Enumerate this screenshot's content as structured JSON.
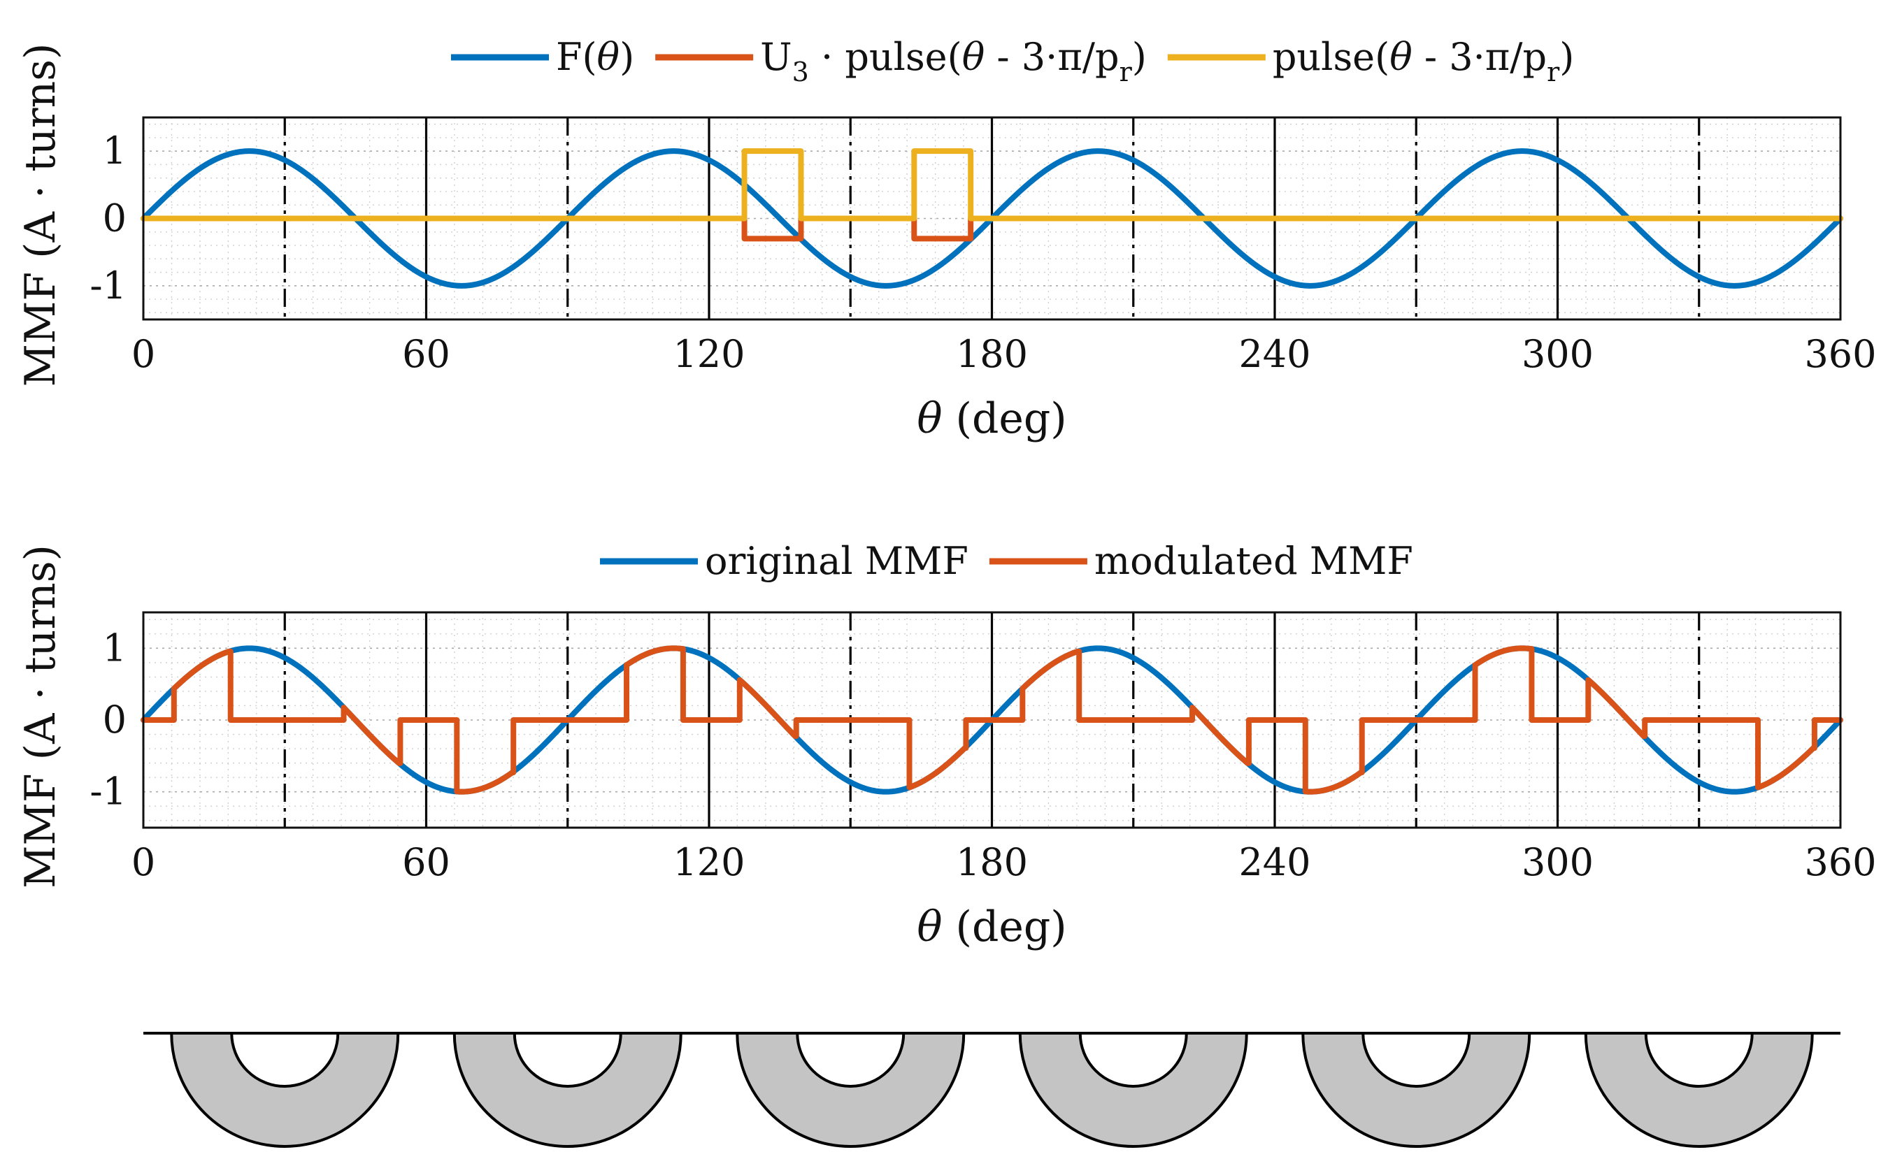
{
  "colors": {
    "blue": "#0072BD",
    "orange": "#D95319",
    "yellow": "#EDB120",
    "rotor_fill": "#c4c4c4"
  },
  "chart_data": [
    {
      "type": "line",
      "xlabel_var": "θ",
      "xlabel_unit": "(deg)",
      "ylabel": "MMF (A · turns)",
      "xlim": [
        0,
        360
      ],
      "ylim": [
        -1.5,
        1.5
      ],
      "xticks": [
        0,
        60,
        120,
        180,
        240,
        300,
        360
      ],
      "yticks": [
        1,
        0,
        -1
      ],
      "ytick_labels": [
        "1",
        "0",
        "-1"
      ],
      "grid": "minor",
      "legend_position": "top-center",
      "legend": [
        {
          "key": "F",
          "color": "blue",
          "main": "F(",
          "var": "θ",
          "end": ")"
        },
        {
          "key": "U3pulse",
          "color": "orange",
          "main": "U",
          "sub1": "3",
          "mid": " · pulse(",
          "var": "θ",
          "expr": " - 3·π/p",
          "sub2": "r",
          "end": ")"
        },
        {
          "key": "pulse",
          "color": "yellow",
          "main": "pulse(",
          "var": "θ",
          "expr": " - 3·π/p",
          "sub2": "r",
          "end": ")"
        }
      ],
      "series": [
        {
          "name": "F(θ)",
          "function": "sin(4θ)",
          "color": "blue"
        },
        {
          "name": "U3 · pulse(θ - 3·π/pr)",
          "color": "orange",
          "segments": [
            [
              127.5,
              139.5
            ],
            [
              163.5,
              175.5
            ]
          ],
          "level": -0.3
        },
        {
          "name": "pulse(θ - 3·π/pr)",
          "color": "yellow",
          "segments": [
            [
              127.5,
              139.5
            ],
            [
              163.5,
              175.5
            ]
          ],
          "level": 1
        }
      ]
    },
    {
      "type": "line",
      "xlabel_var": "θ",
      "xlabel_unit": "(deg)",
      "ylabel": "MMF (A · turns)",
      "xlim": [
        0,
        360
      ],
      "ylim": [
        -1.5,
        1.5
      ],
      "xticks": [
        0,
        60,
        120,
        180,
        240,
        300,
        360
      ],
      "yticks": [
        1,
        0,
        -1
      ],
      "ytick_labels": [
        "1",
        "0",
        "-1"
      ],
      "grid": "minor",
      "legend_position": "top-center",
      "legend": [
        {
          "key": "orig",
          "color": "blue",
          "label": "original MMF"
        },
        {
          "key": "mod",
          "color": "orange",
          "label": "modulated MMF"
        }
      ],
      "series": [
        {
          "name": "original MMF",
          "function": "sin(4θ)",
          "color": "blue"
        },
        {
          "name": "modulated MMF",
          "function": "sin(4θ) inside windows, 0 outside",
          "color": "orange",
          "windows": [
            [
              6.5,
              18.5
            ],
            [
              42.5,
              54.5
            ],
            [
              66.5,
              78.5
            ],
            [
              102.5,
              114.5
            ],
            [
              126.5,
              138.5
            ],
            [
              162.5,
              174.5
            ],
            [
              186.5,
              198.5
            ],
            [
              222.5,
              234.5
            ],
            [
              246.5,
              258.5
            ],
            [
              282.5,
              294.5
            ],
            [
              306.5,
              318.5
            ],
            [
              342.5,
              354.5
            ]
          ]
        }
      ]
    }
  ],
  "reference_lines": {
    "solid_deg": [
      60,
      120,
      180,
      240,
      300
    ],
    "dashdot_deg": [
      30,
      90,
      150,
      210,
      270,
      330
    ]
  },
  "rotor": {
    "pole_centers_deg": [
      30,
      90,
      150,
      210,
      270,
      330
    ]
  }
}
